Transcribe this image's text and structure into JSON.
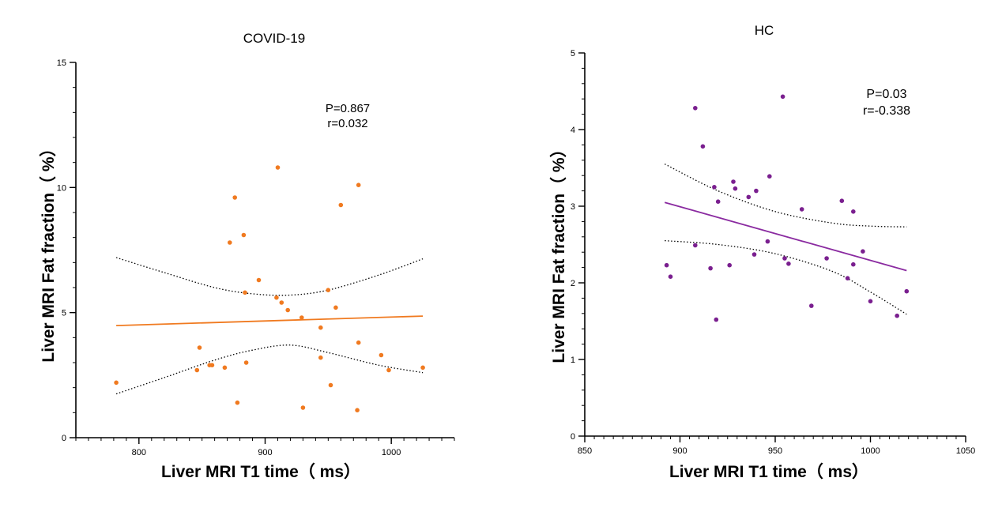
{
  "chart_data": [
    {
      "id": "left",
      "type": "scatter",
      "title": "COVID-19",
      "xlabel": "Liver MRI T1 time（ ms）",
      "ylabel": "Liver MRI Fat fraction（ %）",
      "xlim": [
        750,
        1050
      ],
      "ylim": [
        0,
        15
      ],
      "xticks": [
        800,
        900,
        1000
      ],
      "yticks": [
        0,
        5,
        10,
        15
      ],
      "annotation": [
        "P=0.867",
        "r=0.032"
      ],
      "point_color": "#f07a20",
      "line_color": "#f07a20",
      "points": [
        [
          782,
          2.2
        ],
        [
          846,
          2.7
        ],
        [
          848,
          3.6
        ],
        [
          856,
          2.9
        ],
        [
          858,
          2.9
        ],
        [
          868,
          2.8
        ],
        [
          872,
          7.8
        ],
        [
          876,
          9.6
        ],
        [
          878,
          1.4
        ],
        [
          883,
          8.1
        ],
        [
          884,
          5.8
        ],
        [
          885,
          3.0
        ],
        [
          895,
          6.3
        ],
        [
          909,
          5.6
        ],
        [
          910,
          10.8
        ],
        [
          913,
          5.4
        ],
        [
          918,
          5.1
        ],
        [
          929,
          4.8
        ],
        [
          930,
          1.2
        ],
        [
          944,
          4.4
        ],
        [
          944,
          3.2
        ],
        [
          950,
          5.9
        ],
        [
          952,
          2.1
        ],
        [
          956,
          5.2
        ],
        [
          960,
          9.3
        ],
        [
          974,
          10.1
        ],
        [
          974,
          3.8
        ],
        [
          973,
          1.1
        ],
        [
          992,
          3.3
        ],
        [
          998,
          2.7
        ],
        [
          1025,
          2.8
        ]
      ],
      "fit_line": [
        [
          782,
          4.48
        ],
        [
          1025,
          4.86
        ]
      ],
      "ci_upper": [
        [
          782,
          7.2
        ],
        [
          820,
          6.6
        ],
        [
          860,
          6.0
        ],
        [
          890,
          5.75
        ],
        [
          920,
          5.7
        ],
        [
          950,
          5.9
        ],
        [
          990,
          6.5
        ],
        [
          1025,
          7.15
        ]
      ],
      "ci_lower": [
        [
          782,
          1.75
        ],
        [
          820,
          2.4
        ],
        [
          860,
          3.1
        ],
        [
          890,
          3.5
        ],
        [
          920,
          3.7
        ],
        [
          950,
          3.4
        ],
        [
          990,
          2.9
        ],
        [
          1025,
          2.6
        ]
      ]
    },
    {
      "id": "right",
      "type": "scatter",
      "title": "HC",
      "xlabel": "Liver MRI T1 time（ ms）",
      "ylabel": "Liver MRI Fat fraction（ %）",
      "xlim": [
        850,
        1050
      ],
      "ylim": [
        0,
        5
      ],
      "xticks": [
        850,
        900,
        950,
        1000,
        1050
      ],
      "yticks": [
        0,
        1,
        2,
        3,
        4,
        5
      ],
      "annotation": [
        "P=0.03",
        "r=-0.338"
      ],
      "point_color": "#7a1f8f",
      "line_color": "#8a2aa0",
      "points": [
        [
          893,
          2.23
        ],
        [
          895,
          2.08
        ],
        [
          908,
          4.28
        ],
        [
          908,
          2.49
        ],
        [
          912,
          3.78
        ],
        [
          916,
          2.19
        ],
        [
          918,
          3.25
        ],
        [
          919,
          1.52
        ],
        [
          920,
          3.06
        ],
        [
          926,
          2.23
        ],
        [
          928,
          3.32
        ],
        [
          929,
          3.23
        ],
        [
          936,
          3.12
        ],
        [
          939,
          2.37
        ],
        [
          940,
          3.2
        ],
        [
          946,
          2.54
        ],
        [
          947,
          3.39
        ],
        [
          954,
          4.43
        ],
        [
          955,
          2.32
        ],
        [
          957,
          2.25
        ],
        [
          964,
          2.96
        ],
        [
          969,
          1.7
        ],
        [
          977,
          2.32
        ],
        [
          985,
          3.07
        ],
        [
          988,
          2.06
        ],
        [
          991,
          2.93
        ],
        [
          991,
          2.24
        ],
        [
          996,
          2.41
        ],
        [
          1000,
          1.76
        ],
        [
          1014,
          1.57
        ],
        [
          1019,
          1.89
        ]
      ],
      "fit_line": [
        [
          892,
          3.05
        ],
        [
          1019,
          2.16
        ]
      ],
      "ci_upper": [
        [
          892,
          3.55
        ],
        [
          920,
          3.2
        ],
        [
          950,
          2.93
        ],
        [
          980,
          2.78
        ],
        [
          1000,
          2.74
        ],
        [
          1019,
          2.73
        ]
      ],
      "ci_lower": [
        [
          892,
          2.55
        ],
        [
          920,
          2.5
        ],
        [
          950,
          2.38
        ],
        [
          980,
          2.15
        ],
        [
          1000,
          1.88
        ],
        [
          1019,
          1.59
        ]
      ]
    }
  ]
}
